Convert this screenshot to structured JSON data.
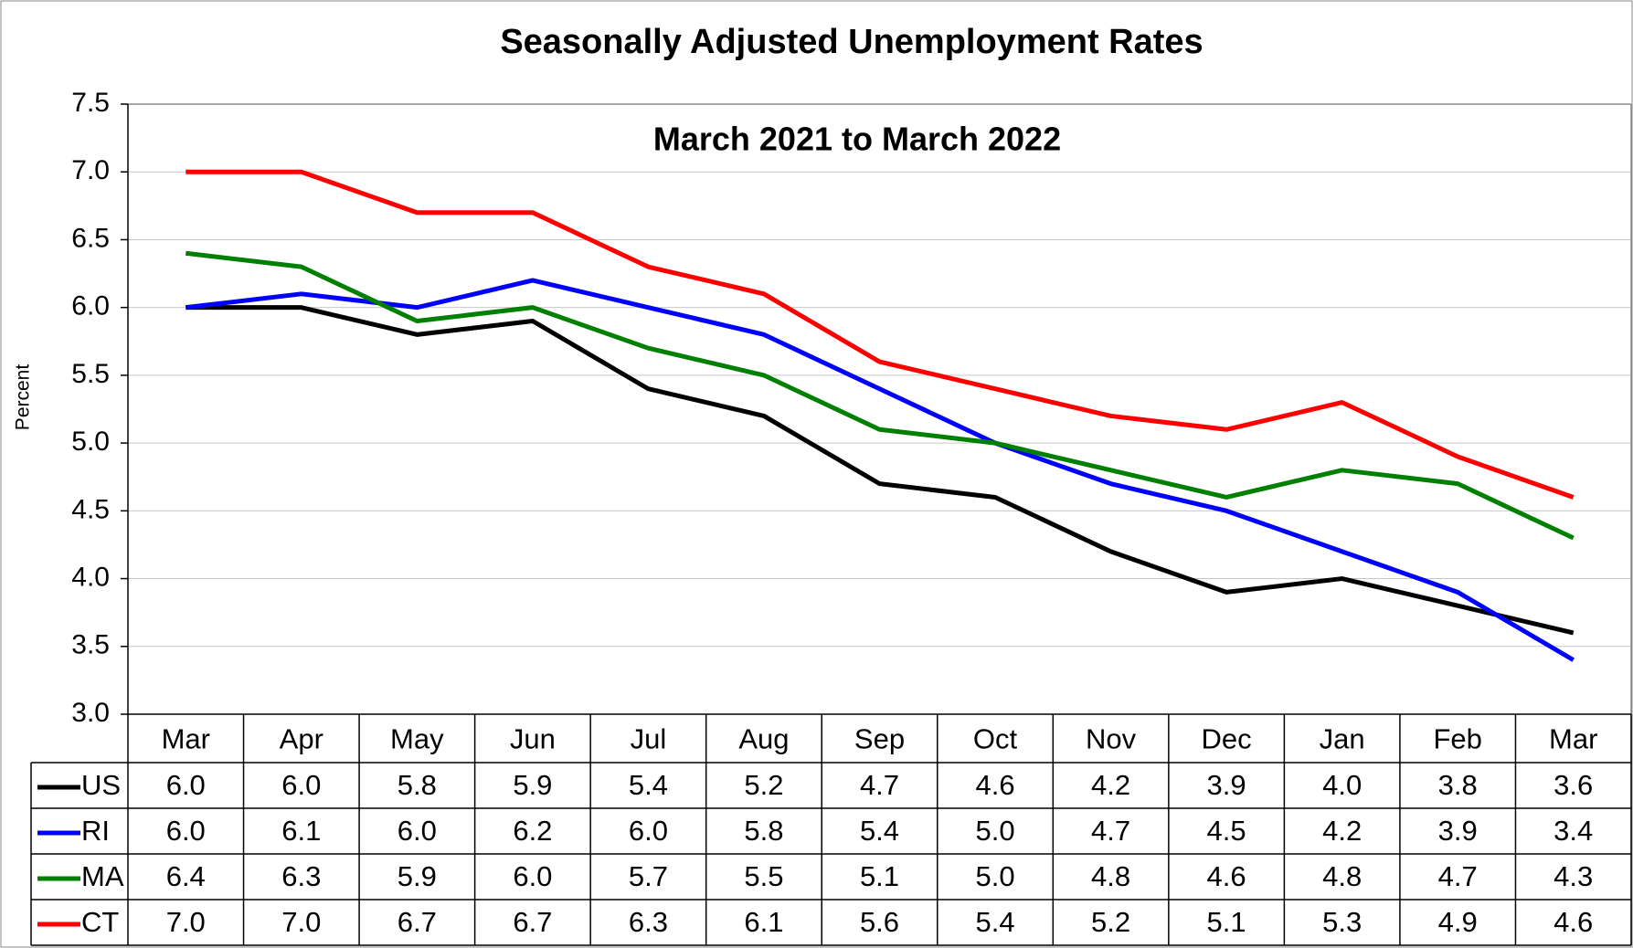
{
  "chart_data": {
    "type": "line",
    "title": "Seasonally Adjusted Unemployment Rates",
    "subtitle": "March 2021 to March 2022",
    "y_label": "Percent",
    "categories": [
      "Mar",
      "Apr",
      "May",
      "Jun",
      "Jul",
      "Aug",
      "Sep",
      "Oct",
      "Nov",
      "Dec",
      "Jan",
      "Feb",
      "Mar"
    ],
    "series": [
      {
        "name": "US",
        "color": "#000000",
        "values": [
          6.0,
          6.0,
          5.8,
          5.9,
          5.4,
          5.2,
          4.7,
          4.6,
          4.2,
          3.9,
          4.0,
          3.8,
          3.6
        ],
        "value_labels": [
          "6.0",
          "6.0",
          "5.8",
          "5.9",
          "5.4",
          "5.2",
          "4.7",
          "4.6",
          "4.2",
          "3.9",
          "4.0",
          "3.8",
          "3.6"
        ]
      },
      {
        "name": "RI",
        "color": "#0000ff",
        "values": [
          6.0,
          6.1,
          6.0,
          6.2,
          6.0,
          5.8,
          5.4,
          5.0,
          4.7,
          4.5,
          4.2,
          3.9,
          3.4
        ],
        "value_labels": [
          "6.0",
          "6.1",
          "6.0",
          "6.2",
          "6.0",
          "5.8",
          "5.4",
          "5.0",
          "4.7",
          "4.5",
          "4.2",
          "3.9",
          "3.4"
        ]
      },
      {
        "name": "MA",
        "color": "#008000",
        "values": [
          6.4,
          6.3,
          5.9,
          6.0,
          5.7,
          5.5,
          5.1,
          5.0,
          4.8,
          4.6,
          4.8,
          4.7,
          4.3
        ],
        "value_labels": [
          "6.4",
          "6.3",
          "5.9",
          "6.0",
          "5.7",
          "5.5",
          "5.1",
          "5.0",
          "4.8",
          "4.6",
          "4.8",
          "4.7",
          "4.3"
        ]
      },
      {
        "name": "CT",
        "color": "#ff0000",
        "values": [
          7.0,
          7.0,
          6.7,
          6.7,
          6.3,
          6.1,
          5.6,
          5.4,
          5.2,
          5.1,
          5.3,
          4.9,
          4.6
        ],
        "value_labels": [
          "7.0",
          "7.0",
          "6.7",
          "6.7",
          "6.3",
          "6.1",
          "5.6",
          "5.4",
          "5.2",
          "5.1",
          "5.3",
          "4.9",
          "4.6"
        ]
      }
    ],
    "ylim": [
      3.0,
      7.5
    ],
    "yticks": [
      {
        "value": 3.0,
        "label": "3.0"
      },
      3.5,
      {
        "value": 4.0,
        "label": "4.0"
      },
      4.5,
      {
        "value": 5.0,
        "label": "5.0"
      },
      5.5,
      {
        "value": 6.0,
        "label": "6.0"
      },
      6.5,
      {
        "value": 7.0,
        "label": "7.0"
      },
      7.5
    ],
    "grid": true
  }
}
